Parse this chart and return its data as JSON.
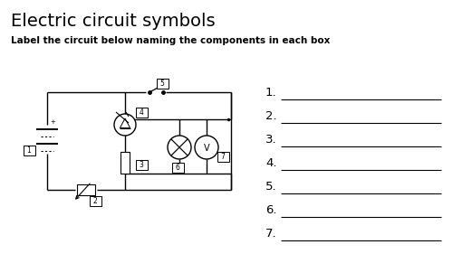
{
  "title": "Electric circuit symbols",
  "subtitle": "Label the circuit below naming the components in each box",
  "bg_color": "#ffffff",
  "text_color": "#000000",
  "numbers": [
    "1.",
    "2.",
    "3.",
    "4.",
    "5.",
    "6.",
    "7."
  ],
  "line_color": "#000000",
  "box_labels": [
    "1",
    "2",
    "3",
    "4",
    "5",
    "6",
    "7"
  ],
  "title_fontsize": 14,
  "subtitle_fontsize": 7.5,
  "number_fontsize": 9.5
}
